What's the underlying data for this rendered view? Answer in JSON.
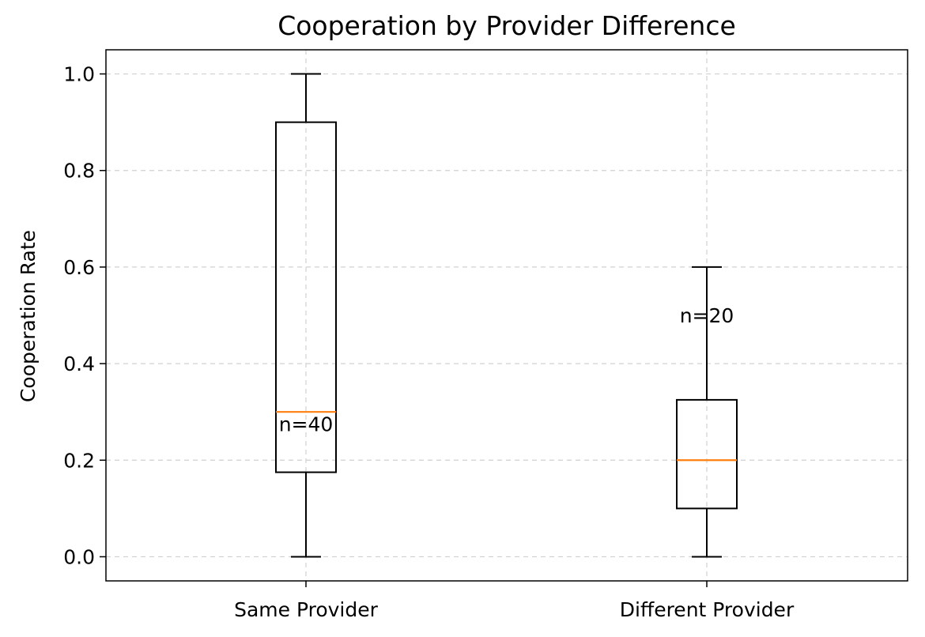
{
  "chart_data": {
    "type": "box",
    "title": "Cooperation by Provider Difference",
    "xlabel": "",
    "ylabel": "Cooperation Rate",
    "ylim": [
      -0.05,
      1.05
    ],
    "yticks": [
      0.0,
      0.2,
      0.4,
      0.6,
      0.8,
      1.0
    ],
    "ytick_labels": [
      "0.0",
      "0.2",
      "0.4",
      "0.6",
      "0.8",
      "1.0"
    ],
    "grid": true,
    "categories": [
      "Same Provider",
      "Different Provider"
    ],
    "boxes": [
      {
        "name": "Same Provider",
        "whisker_low": 0.0,
        "q1": 0.175,
        "median": 0.3,
        "q3": 0.9,
        "whisker_high": 1.0,
        "n_label": "n=40",
        "n_label_y": 0.275
      },
      {
        "name": "Different Provider",
        "whisker_low": 0.0,
        "q1": 0.1,
        "median": 0.2,
        "q3": 0.325,
        "whisker_high": 0.6,
        "n_label": "n=20",
        "n_label_y": 0.5
      }
    ],
    "colors": {
      "box": "#000000",
      "median": "#ff7f0e",
      "grid": "#d0d0d0"
    }
  }
}
